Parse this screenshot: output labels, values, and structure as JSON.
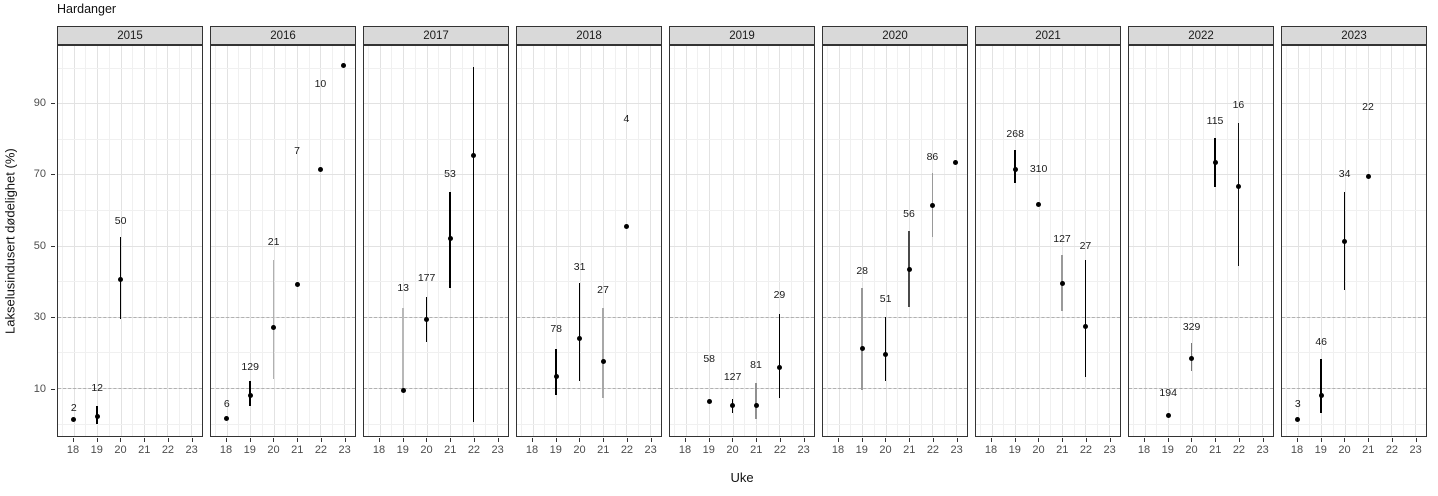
{
  "title": "Hardanger",
  "axes": {
    "x_label": "Uke",
    "y_label": "Lakselusindusert dødelighet (%)",
    "x_ticks": [
      18,
      19,
      20,
      21,
      22,
      23
    ],
    "y_ticks": [
      10,
      30,
      50,
      70,
      90
    ],
    "y_minor_ticks": [
      0,
      20,
      40,
      60,
      80,
      100
    ],
    "reference_lines_y": [
      10,
      30
    ]
  },
  "colors": {
    "strip_bg": "#d9d9d9",
    "strip_border": "#333333",
    "panel_border": "#333333",
    "grid_major": "#e2e2e2",
    "grid_minor": "#f0f0f0",
    "reference_line": "#b0b0b0",
    "point": "#000000",
    "tick_text": "#4d4d4d"
  },
  "chart_data": {
    "type": "scatter",
    "x_variable": "Uke",
    "y_variable": "Lakselusindusert dødelighet (%)",
    "facet_variable": "year",
    "ylim": [
      -3.5,
      106
    ],
    "grid": true,
    "facets": [
      {
        "year": "2015",
        "points": [
          {
            "week": 18,
            "value": 1,
            "count": "2",
            "count_y": 4.5
          },
          {
            "week": 19,
            "value": 2,
            "ci": [
              0,
              5
            ],
            "bar_color": "#000000",
            "count": "12",
            "count_y": 10
          },
          {
            "week": 20,
            "value": 40.5,
            "ci": [
              29.5,
              52.5
            ],
            "bar_color": "#000000",
            "count": "50",
            "count_y": 57
          }
        ]
      },
      {
        "year": "2016",
        "points": [
          {
            "week": 18,
            "value": 1.5,
            "count": "6",
            "count_y": 5.5
          },
          {
            "week": 19,
            "value": 8,
            "ci": [
              5,
              12
            ],
            "bar_color": "#000000",
            "count": "129",
            "count_y": 16
          },
          {
            "week": 20,
            "value": 27,
            "ci": [
              12.5,
              46
            ],
            "bar_color": "#b0b0b0",
            "count": "21",
            "count_y": 51
          },
          {
            "week": 21,
            "value": 39,
            "count": "7",
            "count_y": 76.5
          },
          {
            "week": 22,
            "value": 71.5,
            "count": "10",
            "count_y": 95.5
          },
          {
            "week": 23,
            "value": 100.5
          }
        ]
      },
      {
        "year": "2017",
        "points": [
          {
            "week": 19,
            "value": 9.2,
            "ci": [
              9.2,
              32.5
            ],
            "bar_color": "#b8b8b8",
            "count": "13",
            "count_y": 38
          },
          {
            "week": 20,
            "value": 29.3,
            "ci": [
              23,
              35.5
            ],
            "bar_color": "#000000",
            "count": "177",
            "count_y": 41
          },
          {
            "week": 21,
            "value": 52,
            "ci": [
              38,
              65
            ],
            "bar_color": "#000000",
            "count": "53",
            "count_y": 70
          },
          {
            "week": 22,
            "value": 75.4,
            "ci": [
              0.5,
              100.2
            ],
            "bar_color": "#000000"
          }
        ]
      },
      {
        "year": "2018",
        "points": [
          {
            "week": 19,
            "value": 13.2,
            "ci": [
              8,
              21
            ],
            "bar_color": "#000000",
            "count": "78",
            "count_y": 26.5
          },
          {
            "week": 20,
            "value": 24,
            "ci": [
              12,
              39.5
            ],
            "bar_color": "#000000",
            "count": "31",
            "count_y": 44
          },
          {
            "week": 21,
            "value": 17.3,
            "ci": [
              7.3,
              32.5
            ],
            "bar_color": "#a8a8a8",
            "count": "27",
            "count_y": 37.5
          },
          {
            "week": 22,
            "value": 55.3,
            "count": "4",
            "count_y": 85.5
          }
        ]
      },
      {
        "year": "2019",
        "points": [
          {
            "week": 19,
            "value": 6.2,
            "count": "58",
            "count_y": 18
          },
          {
            "week": 20,
            "value": 5,
            "ci": [
              3.1,
              6.8
            ],
            "bar_color": "#000000",
            "count": "127",
            "count_y": 13
          },
          {
            "week": 21,
            "value": 5,
            "ci": [
              1.3,
              11.5
            ],
            "bar_color": "#909090",
            "count": "81",
            "count_y": 16.5
          },
          {
            "week": 22,
            "value": 15.8,
            "ci": [
              7.3,
              30.7
            ],
            "bar_color": "#000000",
            "count": "29",
            "count_y": 36
          }
        ]
      },
      {
        "year": "2020",
        "points": [
          {
            "week": 19,
            "value": 21.2,
            "ci": [
              9.5,
              38
            ],
            "bar_color": "#989898",
            "count": "28",
            "count_y": 43
          },
          {
            "week": 20,
            "value": 19.3,
            "ci": [
              12,
              30
            ],
            "bar_color": "#000000",
            "count": "51",
            "count_y": 35
          },
          {
            "week": 21,
            "value": 43.2,
            "ci": [
              32.8,
              54.2
            ],
            "bar_color": "#4a4a4a",
            "count": "56",
            "count_y": 59
          },
          {
            "week": 22,
            "value": 61.4,
            "ci": [
              52.3,
              70.5
            ],
            "bar_color": "#9a9a9a",
            "count": "86",
            "count_y": 75
          },
          {
            "week": 23,
            "value": 73.3
          }
        ]
      },
      {
        "year": "2021",
        "points": [
          {
            "week": 19,
            "value": 71.4,
            "ci": [
              67.7,
              76.8
            ],
            "bar_color": "#000000",
            "count": "268",
            "count_y": 81.5
          },
          {
            "week": 20,
            "value": 61.5,
            "count": "310",
            "count_y": 71.5
          },
          {
            "week": 21,
            "value": 39.3,
            "ci": [
              31.6,
              47.4
            ],
            "bar_color": "#9a9a9a",
            "count": "127",
            "count_y": 52
          },
          {
            "week": 22,
            "value": 27.2,
            "ci": [
              13.2,
              46
            ],
            "bar_color": "#000000",
            "count": "27",
            "count_y": 50
          }
        ]
      },
      {
        "year": "2022",
        "points": [
          {
            "week": 19,
            "value": 2.2,
            "count": "194",
            "count_y": 8.5
          },
          {
            "week": 20,
            "value": 18.2,
            "ci": [
              14.7,
              22.5
            ],
            "bar_color": "#777777",
            "count": "329",
            "count_y": 27
          },
          {
            "week": 21,
            "value": 73.3,
            "ci": [
              66.6,
              80.2
            ],
            "bar_color": "#000000",
            "count": "115",
            "count_y": 85
          },
          {
            "week": 22,
            "value": 66.6,
            "ci": [
              44.4,
              84.4
            ],
            "bar_color": "#111111",
            "count": "16",
            "count_y": 89.5
          }
        ]
      },
      {
        "year": "2023",
        "points": [
          {
            "week": 18,
            "value": 1,
            "count": "3",
            "count_y": 5.5
          },
          {
            "week": 19,
            "value": 8,
            "ci": [
              2.9,
              18
            ],
            "bar_color": "#000000",
            "count": "46",
            "count_y": 23
          },
          {
            "week": 20,
            "value": 51.2,
            "ci": [
              37.6,
              65
            ],
            "bar_color": "#000000",
            "count": "34",
            "count_y": 70
          },
          {
            "week": 21,
            "value": 69.3,
            "count": "22",
            "count_y": 89
          }
        ]
      }
    ]
  }
}
